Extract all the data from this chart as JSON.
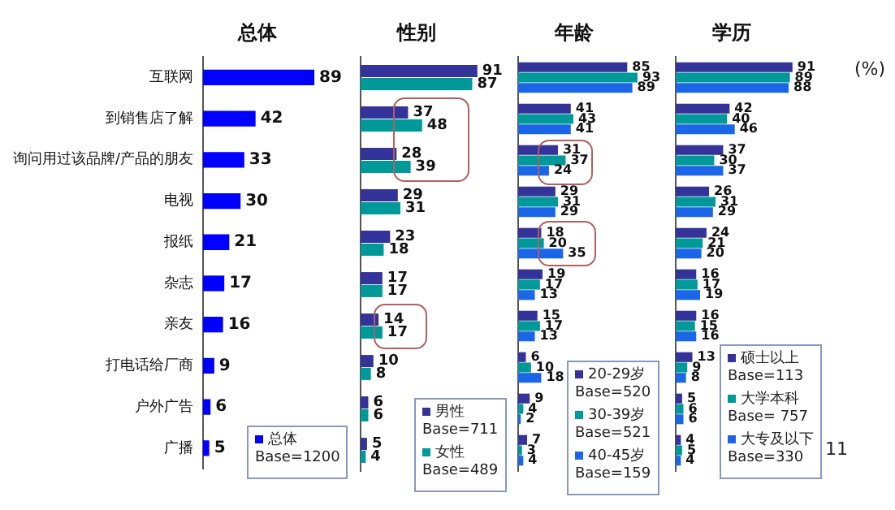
{
  "chart_data": [
    {
      "type": "bar",
      "title": "总体",
      "orientation": "horizontal",
      "categories": [
        "互联网",
        "到销售店了解",
        "询问用过该品牌/产品的朋友",
        "电视",
        "报纸",
        "杂志",
        "亲友",
        "打电话给厂商",
        "户外广告",
        "广播"
      ],
      "tick_labels": "y",
      "legend": "bottom right",
      "data_labels": true,
      "series": [
        {
          "name": "总体",
          "color": "#0000ff",
          "values": [
            89,
            42,
            33,
            30,
            21,
            17,
            16,
            9,
            6,
            5
          ]
        }
      ],
      "annotations": [
        "Base=1200"
      ]
    },
    {
      "type": "bar",
      "title": "性别",
      "orientation": "horizontal",
      "categories": [
        null,
        null,
        null,
        null,
        null,
        null,
        null,
        null,
        null,
        null
      ],
      "tick_labels": false,
      "legend": "bottom right",
      "data_labels": true,
      "series": [
        {
          "name": "男性",
          "color": "#333399",
          "values": [
            91,
            37,
            28,
            29,
            23,
            17,
            14,
            10,
            6,
            5
          ]
        },
        {
          "name": "女性",
          "color": "#009999",
          "values": [
            87,
            48,
            39,
            31,
            18,
            17,
            17,
            8,
            6,
            4
          ]
        }
      ],
      "annotations": [
        "Base=711",
        "Base=489"
      ]
    },
    {
      "type": "bar",
      "title": "年龄",
      "orientation": "horizontal",
      "categories": [
        null,
        null,
        null,
        null,
        null,
        null,
        null,
        null,
        null,
        null
      ],
      "tick_labels": false,
      "legend": "bottom right",
      "data_labels": true,
      "series": [
        {
          "name": "20-29岁",
          "color": "#333399",
          "values": [
            85,
            41,
            31,
            29,
            18,
            19,
            15,
            6,
            9,
            7
          ]
        },
        {
          "name": "30-39岁",
          "color": "#009999",
          "values": [
            93,
            43,
            37,
            31,
            20,
            17,
            17,
            10,
            4,
            3
          ]
        },
        {
          "name": "40-45岁",
          "color": "#1a66e6",
          "values": [
            89,
            41,
            24,
            29,
            35,
            13,
            13,
            18,
            2,
            4
          ]
        }
      ],
      "annotations": [
        "Base=520",
        "Base=521",
        "Base=159"
      ]
    },
    {
      "type": "bar",
      "title": "学历",
      "orientation": "horizontal",
      "categories": [
        null,
        null,
        null,
        null,
        null,
        null,
        null,
        null,
        null,
        null
      ],
      "tick_labels": false,
      "legend": "bottom right",
      "data_labels": true,
      "series": [
        {
          "name": "硕士以上",
          "color": "#333399",
          "values": [
            91,
            42,
            37,
            26,
            24,
            16,
            16,
            13,
            5,
            4
          ]
        },
        {
          "name": "大学本科",
          "color": "#009999",
          "values": [
            89,
            40,
            30,
            31,
            21,
            17,
            15,
            9,
            6,
            5
          ]
        },
        {
          "name": "大专及以下",
          "color": "#1a66e6",
          "values": [
            88,
            46,
            37,
            29,
            20,
            19,
            16,
            8,
            6,
            4
          ]
        }
      ],
      "annotations": [
        "Base=113",
        "Base= 757",
        "Base=330",
        "(%)",
        "11"
      ]
    }
  ]
}
